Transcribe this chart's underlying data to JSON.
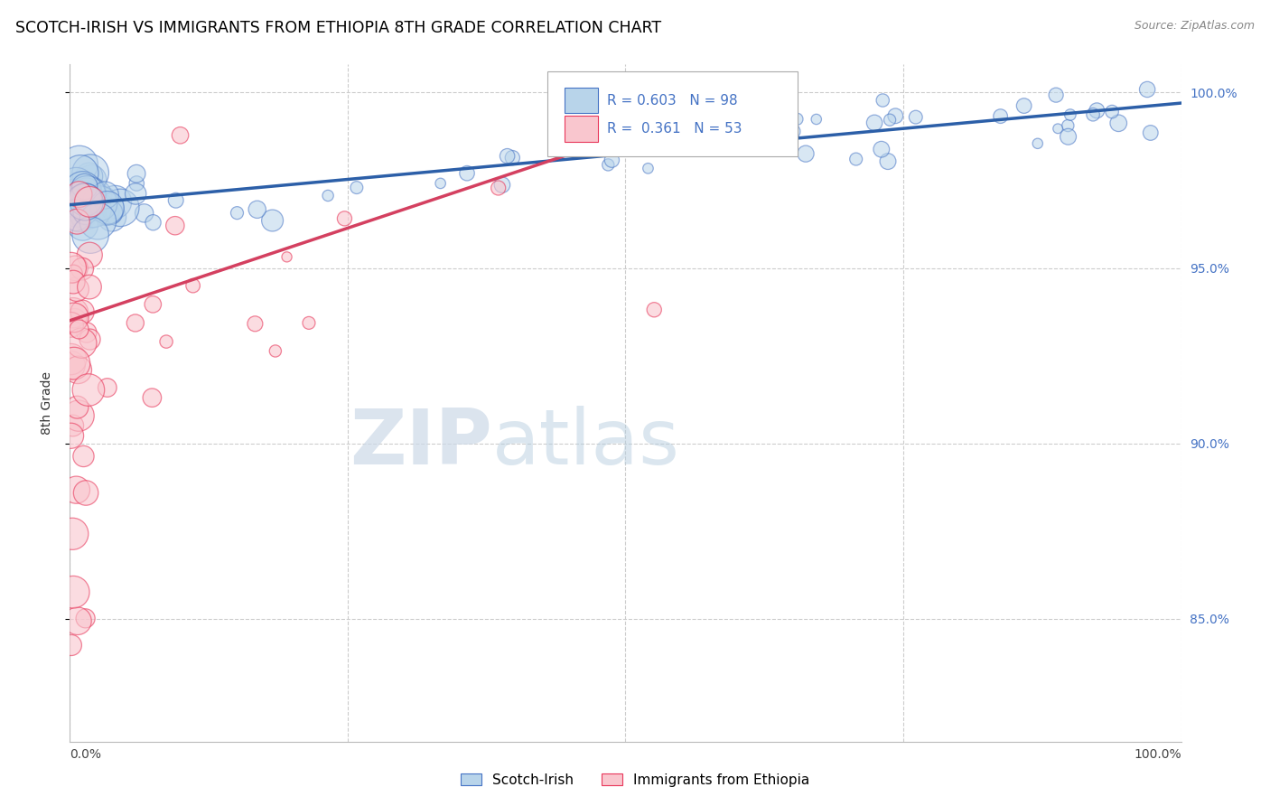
{
  "title": "SCOTCH-IRISH VS IMMIGRANTS FROM ETHIOPIA 8TH GRADE CORRELATION CHART",
  "source": "Source: ZipAtlas.com",
  "ylabel": "8th Grade",
  "legend_blue_label": "Scotch-Irish",
  "legend_pink_label": "Immigrants from Ethiopia",
  "blue_R": 0.603,
  "blue_N": 98,
  "pink_R": 0.361,
  "pink_N": 53,
  "y_tick_vals": [
    0.85,
    0.9,
    0.95,
    1.0
  ],
  "y_tick_labels": [
    "85.0%",
    "90.0%",
    "95.0%",
    "100.0%"
  ],
  "ylim_min": 0.815,
  "ylim_max": 1.008,
  "xlim_min": 0.0,
  "xlim_max": 1.0,
  "blue_color": "#b8d4ea",
  "blue_edge_color": "#4472c4",
  "pink_color": "#f9c6ce",
  "pink_edge_color": "#e8365a",
  "blue_line_color": "#2c5fa8",
  "pink_line_color": "#d44060",
  "background_color": "#ffffff",
  "watermark_zip_color": "#ccd9e8",
  "watermark_atlas_color": "#b8cfe0",
  "grid_color": "#cccccc",
  "right_axis_color": "#4472c4",
  "blue_trend_x0": 0.0,
  "blue_trend_y0": 0.968,
  "blue_trend_x1": 1.0,
  "blue_trend_y1": 0.997,
  "pink_trend_x0": 0.0,
  "pink_trend_y0": 0.935,
  "pink_trend_x1": 0.55,
  "pink_trend_y1": 0.993
}
